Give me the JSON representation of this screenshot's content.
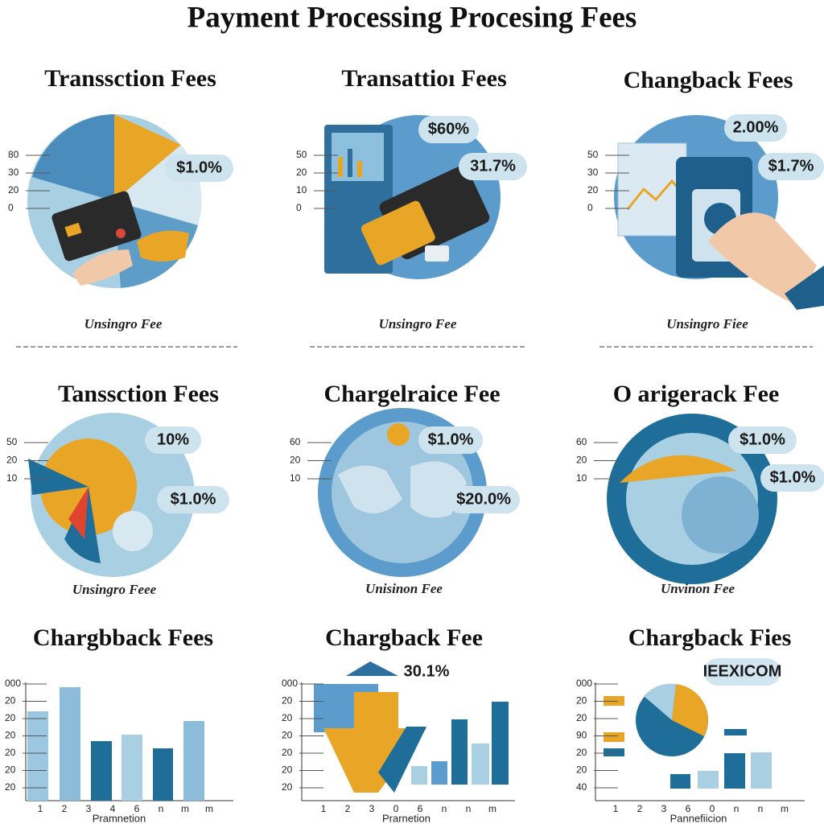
{
  "title": "Payment Processing Procesing Fees",
  "panels": [
    {
      "title": "Transsction Fees",
      "ticks": [
        "80",
        "30",
        "20",
        "0"
      ],
      "callouts": [
        "$1.0%"
      ],
      "caption": "Unsingro Fee"
    },
    {
      "title": "Transattioı Fees",
      "ticks": [
        "50",
        "20",
        "10",
        "0"
      ],
      "callouts": [
        "$60%",
        "31.7%"
      ],
      "caption": "Unsingro Fee"
    },
    {
      "title": "Changback Fees",
      "ticks": [
        "50",
        "30",
        "20",
        "0"
      ],
      "callouts": [
        "2.00%",
        "$1.7%"
      ],
      "caption": "Unsingro Fiee"
    },
    {
      "title": "Tanssction Fees",
      "ticks": [
        "50",
        "20",
        "10"
      ],
      "callouts": [
        "10%",
        "$1.0%"
      ],
      "caption": "Unsingro Feee"
    },
    {
      "title": "Chargelraice Fee",
      "ticks": [
        "60",
        "20",
        "10"
      ],
      "callouts": [
        "$1.0%",
        "$20.0%"
      ],
      "caption": "Unisinon Fee"
    },
    {
      "title": "O arigerack Fee",
      "ticks": [
        "60",
        "20",
        "10"
      ],
      "callouts": [
        "$1.0%",
        "$1.0%"
      ],
      "caption": "Unvinon Fee"
    },
    {
      "title": "Chargbback Fees",
      "ticks": [
        "000",
        "20",
        "20",
        "20",
        "20",
        "20",
        "20"
      ],
      "xticks": [
        "1",
        "2",
        "3",
        "4",
        "6",
        "n",
        "m",
        "m"
      ],
      "caption": "Pramnetion"
    },
    {
      "title": "Chargback Fee",
      "ticks": [
        "000",
        "20",
        "20",
        "20",
        "20",
        "20",
        "20"
      ],
      "xticks": [
        "1",
        "2",
        "3",
        "0",
        "6",
        "n",
        "n",
        "m"
      ],
      "callouts": [
        "30.1%"
      ],
      "caption": "Prarnetion"
    },
    {
      "title": "Chargback Fies",
      "ticks": [
        "000",
        "20",
        "20",
        "90",
        "20",
        "20",
        "40"
      ],
      "xticks": [
        "1",
        "2",
        "3",
        "6",
        "0",
        "n",
        "n",
        "m"
      ],
      "callouts": [
        "IEEXICOM"
      ],
      "caption": "Pannefiicion"
    }
  ]
}
